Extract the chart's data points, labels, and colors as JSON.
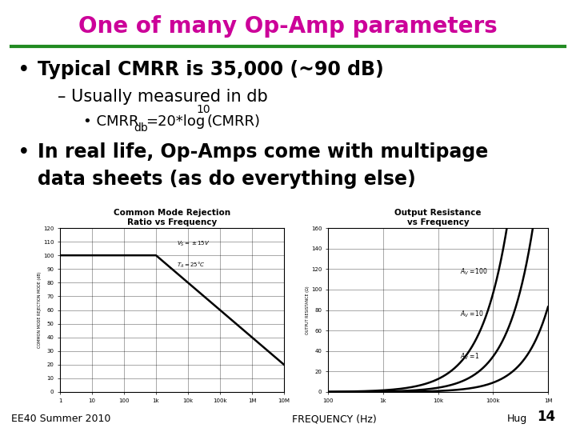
{
  "title": "One of many Op-Amp parameters",
  "title_color": "#CC0099",
  "title_fontsize": 20,
  "bg_color": "#FFFFFF",
  "separator_color": "#228B22",
  "separator_linewidth": 3,
  "bullet1_text": "Typical CMRR is 35,000 (~90 dB)",
  "sub1_text": "– Usually measured in db",
  "bullet2_line1": "In real life, Op-Amps come with multipage",
  "bullet2_line2": "data sheets (as do everything else)",
  "graph1_title": "Common Mode Rejection\nRatio vs Frequency",
  "graph2_title": "Output Resistance\nvs Frequency",
  "footer_left": "EE40 Summer 2010",
  "footer_center": "FREQUENCY (Hz)",
  "footer_right": "Hug",
  "footer_pagenum": "14",
  "text_color": "#000000",
  "bullet_fontsize": 17,
  "sub_fontsize": 15,
  "subsub_fontsize": 13,
  "footer_fontsize": 9,
  "graph_title_fontsize": 7.5
}
